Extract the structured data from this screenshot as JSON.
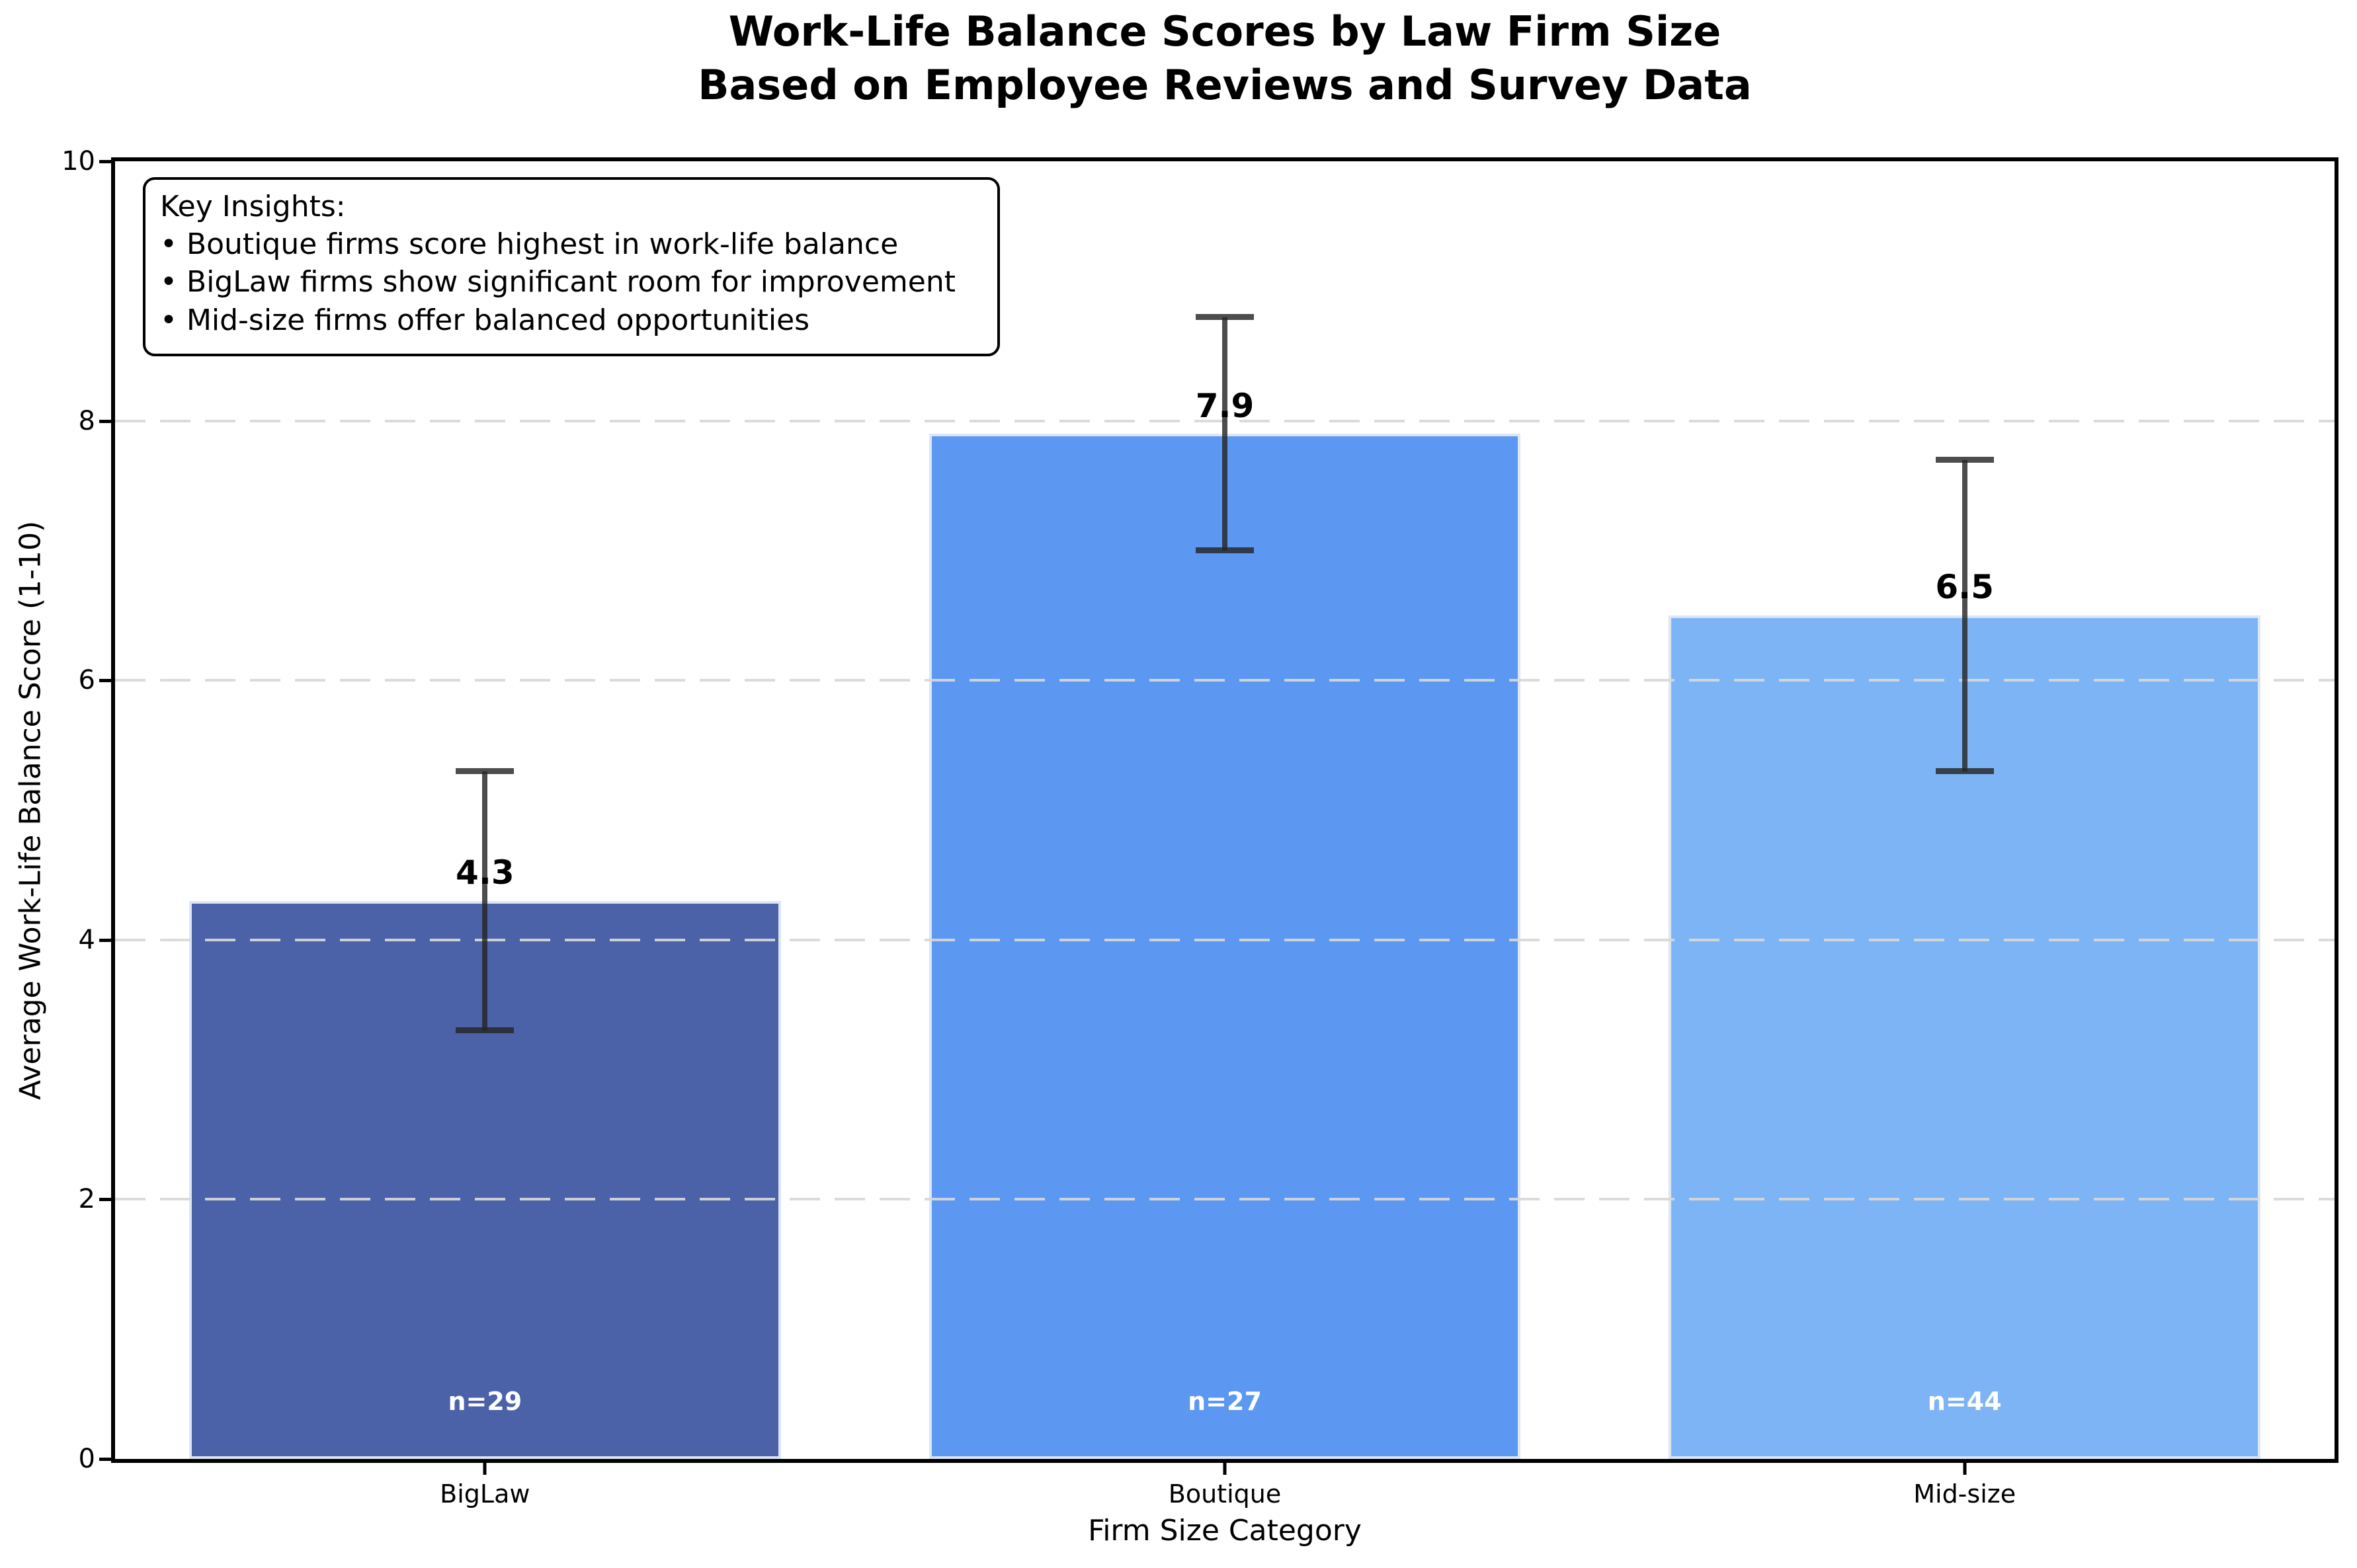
{
  "chart_data": {
    "type": "bar",
    "title": "Work-Life Balance Scores by Law Firm Size",
    "subtitle": "Based on Employee Reviews and Survey Data",
    "xlabel": "Firm Size Category",
    "ylabel": "Average Work-Life Balance Score (1-10)",
    "ylim": [
      0,
      10
    ],
    "yticks": [
      0,
      2,
      4,
      6,
      8,
      10
    ],
    "gridlines": {
      "axis": "y",
      "at": [
        2,
        4,
        6,
        8
      ],
      "style": "dashed",
      "color": "#D8D8D8"
    },
    "legend": "none",
    "categories": [
      "BigLaw",
      "Boutique",
      "Mid-size"
    ],
    "values": [
      4.3,
      7.9,
      6.5
    ],
    "error_bars": [
      1.0,
      0.9,
      1.2
    ],
    "value_labels": [
      "4.3",
      "7.9",
      "6.5"
    ],
    "sample_size_labels": [
      "n=29",
      "n=27",
      "n=44"
    ],
    "bar_colors": [
      "#4C62A8",
      "#5C97F2",
      "#7DB4F5"
    ],
    "bar_edge_color": "#DDE6F4",
    "error_bar_color": "rgba(38,38,38,0.82)",
    "annotation_box": {
      "title": "Key Insights:",
      "bullets": [
        "• Boutique firms score highest in work-life balance",
        "• BigLaw firms show significant room for improvement",
        "• Mid-size firms offer balanced opportunities"
      ]
    }
  }
}
